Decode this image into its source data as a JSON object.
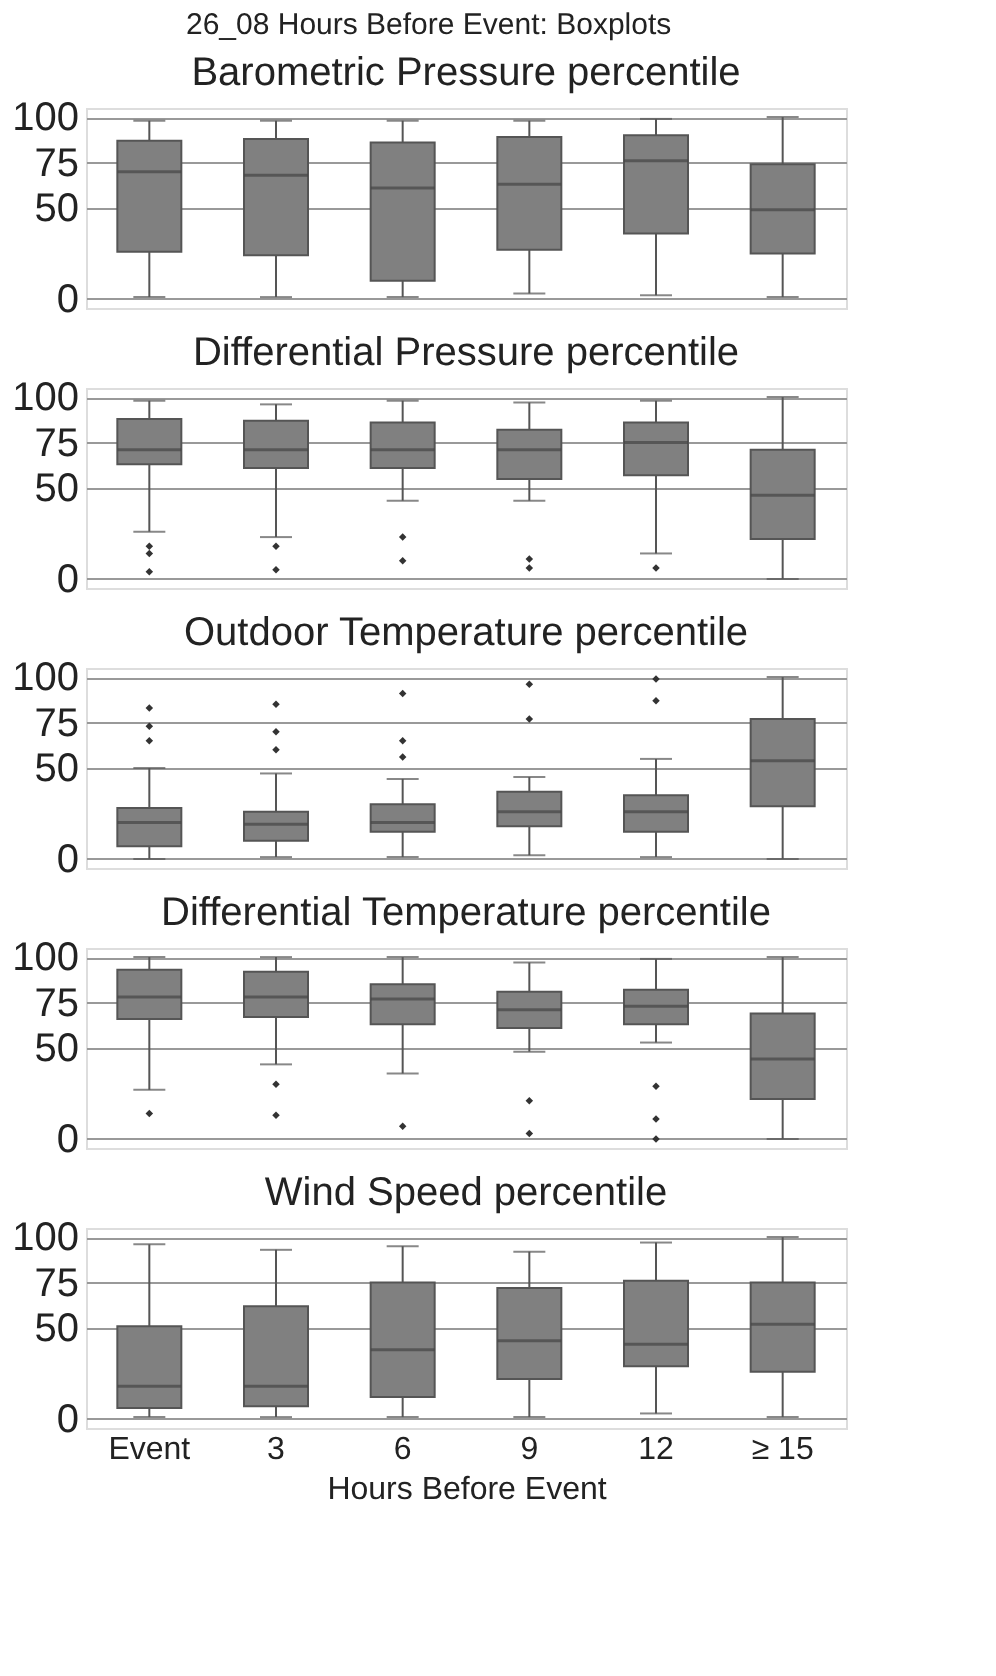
{
  "chart_data": [
    {
      "type": "box",
      "title": "26_08 Hours Before Event: Boxplots",
      "subtitle": "Barometric Pressure percentile",
      "ylim": [
        -5,
        105
      ],
      "yticks": [
        0,
        50,
        75,
        100
      ],
      "grid": "y",
      "tick_labels": "y",
      "color": "#808080",
      "marker": "diamond",
      "boxes": [
        {
          "low": 1,
          "q1": 26,
          "median": 70,
          "q3": 87,
          "high": 98
        },
        {
          "low": 1,
          "q1": 24,
          "median": 68,
          "q3": 88,
          "high": 98
        },
        {
          "low": 1,
          "q1": 10,
          "median": 61,
          "q3": 86,
          "high": 98
        },
        {
          "low": 3,
          "q1": 27,
          "median": 63,
          "q3": 89,
          "high": 98
        },
        {
          "low": 2,
          "q1": 36,
          "median": 76,
          "q3": 90,
          "high": 99
        },
        {
          "low": 1,
          "q1": 25,
          "median": 49,
          "q3": 74,
          "high": 100
        }
      ]
    },
    {
      "type": "box",
      "title": "Differential Pressure percentile",
      "ylim": [
        -5,
        105
      ],
      "yticks": [
        0,
        50,
        75,
        100
      ],
      "grid": "y",
      "tick_labels": "y",
      "color": "#808080",
      "marker": "diamond",
      "boxes": [
        {
          "low": 26,
          "q1": 63,
          "median": 71,
          "q3": 88,
          "high": 98,
          "outliers": [
            18,
            14,
            4
          ]
        },
        {
          "low": 23,
          "q1": 61,
          "median": 71,
          "q3": 87,
          "high": 96,
          "outliers": [
            18,
            5
          ]
        },
        {
          "low": 43,
          "q1": 61,
          "median": 71,
          "q3": 86,
          "high": 98,
          "outliers": [
            23,
            10
          ]
        },
        {
          "low": 43,
          "q1": 55,
          "median": 71,
          "q3": 82,
          "high": 97,
          "outliers": [
            11,
            6
          ]
        },
        {
          "low": 14,
          "q1": 57,
          "median": 75,
          "q3": 86,
          "high": 98,
          "outliers": [
            6
          ]
        },
        {
          "low": 0,
          "q1": 22,
          "median": 46,
          "q3": 71,
          "high": 100
        }
      ]
    },
    {
      "type": "box",
      "title": "Outdoor Temperature percentile",
      "ylim": [
        -5,
        105
      ],
      "yticks": [
        0,
        50,
        75,
        100
      ],
      "grid": "y",
      "tick_labels": "y",
      "color": "#808080",
      "marker": "diamond",
      "boxes": [
        {
          "low": 0,
          "q1": 7,
          "median": 20,
          "q3": 28,
          "high": 50,
          "outliers": [
            83,
            73,
            65
          ]
        },
        {
          "low": 1,
          "q1": 10,
          "median": 19,
          "q3": 26,
          "high": 47,
          "outliers": [
            85,
            70,
            60
          ]
        },
        {
          "low": 1,
          "q1": 15,
          "median": 20,
          "q3": 30,
          "high": 44,
          "outliers": [
            91,
            65,
            56
          ]
        },
        {
          "low": 2,
          "q1": 18,
          "median": 26,
          "q3": 37,
          "high": 45,
          "outliers": [
            96,
            77
          ]
        },
        {
          "low": 1,
          "q1": 15,
          "median": 26,
          "q3": 35,
          "high": 55,
          "outliers": [
            99,
            87
          ]
        },
        {
          "low": 0,
          "q1": 29,
          "median": 54,
          "q3": 77,
          "high": 100
        }
      ]
    },
    {
      "type": "box",
      "title": "Differential Temperature percentile",
      "ylim": [
        -5,
        105
      ],
      "yticks": [
        0,
        50,
        75,
        100
      ],
      "grid": "y",
      "tick_labels": "y",
      "color": "#808080",
      "marker": "diamond",
      "boxes": [
        {
          "low": 27,
          "q1": 66,
          "median": 78,
          "q3": 93,
          "high": 100,
          "outliers": [
            14
          ]
        },
        {
          "low": 41,
          "q1": 67,
          "median": 78,
          "q3": 92,
          "high": 100,
          "outliers": [
            30,
            13
          ]
        },
        {
          "low": 36,
          "q1": 63,
          "median": 77,
          "q3": 85,
          "high": 100,
          "outliers": [
            7
          ]
        },
        {
          "low": 48,
          "q1": 61,
          "median": 71,
          "q3": 81,
          "high": 97,
          "outliers": [
            21,
            3
          ]
        },
        {
          "low": 53,
          "q1": 63,
          "median": 73,
          "q3": 82,
          "high": 99,
          "outliers": [
            29,
            11,
            0
          ]
        },
        {
          "low": 0,
          "q1": 22,
          "median": 44,
          "q3": 69,
          "high": 100
        }
      ]
    },
    {
      "type": "box",
      "title": "Wind Speed percentile",
      "xlabel": "Hours Before Event",
      "categories": [
        "Event",
        "3",
        "6",
        "9",
        "12",
        "≥ 15"
      ],
      "ylim": [
        -5,
        105
      ],
      "yticks": [
        0,
        50,
        75,
        100
      ],
      "grid": "y",
      "color": "#808080",
      "marker": "diamond",
      "boxes": [
        {
          "low": 1,
          "q1": 6,
          "median": 18,
          "q3": 51,
          "high": 96
        },
        {
          "low": 1,
          "q1": 7,
          "median": 18,
          "q3": 62,
          "high": 93
        },
        {
          "low": 1,
          "q1": 12,
          "median": 38,
          "q3": 75,
          "high": 95
        },
        {
          "low": 1,
          "q1": 22,
          "median": 43,
          "q3": 72,
          "high": 92
        },
        {
          "low": 3,
          "q1": 29,
          "median": 41,
          "q3": 76,
          "high": 97
        },
        {
          "low": 1,
          "q1": 26,
          "median": 52,
          "q3": 75,
          "high": 100
        }
      ]
    }
  ]
}
